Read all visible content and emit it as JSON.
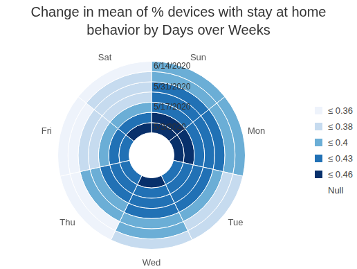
{
  "chart_data": {
    "type": "radial_heatmap",
    "title": "Change in mean of % devices with stay at home behavior by Days over Weeks",
    "categories": [
      "Sun",
      "Mon",
      "Tue",
      "Wed",
      "Thu",
      "Fri",
      "Sat"
    ],
    "rings": [
      "5/3/2020",
      null,
      "5/17/2020",
      null,
      "5/31/2020",
      null,
      "6/14/2020"
    ],
    "cells": [
      [
        0.45,
        0.45,
        0.42,
        0.44,
        0.42,
        0.42,
        0.44
      ],
      [
        0.44,
        0.45,
        0.42,
        0.42,
        0.42,
        0.42,
        0.42
      ],
      [
        0.43,
        0.42,
        0.42,
        0.42,
        0.41,
        0.4,
        0.4
      ],
      [
        0.42,
        0.42,
        0.41,
        0.41,
        0.4,
        0.38,
        0.38
      ],
      [
        0.41,
        0.41,
        0.4,
        0.4,
        0.39,
        0.37,
        0.37
      ],
      [
        0.4,
        0.39,
        0.38,
        0.39,
        0.36,
        0.36,
        0.37
      ],
      [
        0.39,
        0.39,
        0.37,
        0.37,
        0.35,
        0.35,
        0.35
      ]
    ],
    "color_scale": [
      {
        "value": 0.36,
        "label": "≤ 0.36",
        "color": "#eef3fb"
      },
      {
        "value": 0.38,
        "label": "≤ 0.38",
        "color": "#c6dbef"
      },
      {
        "value": 0.4,
        "label": "≤ 0.4",
        "color": "#6baed6"
      },
      {
        "value": 0.43,
        "label": "≤ 0.43",
        "color": "#2171b5"
      },
      {
        "value": 0.46,
        "label": "≤ 0.46",
        "color": "#08306b"
      },
      {
        "value": null,
        "label": "Null",
        "color": "#ffffff"
      }
    ],
    "legend": "right"
  }
}
